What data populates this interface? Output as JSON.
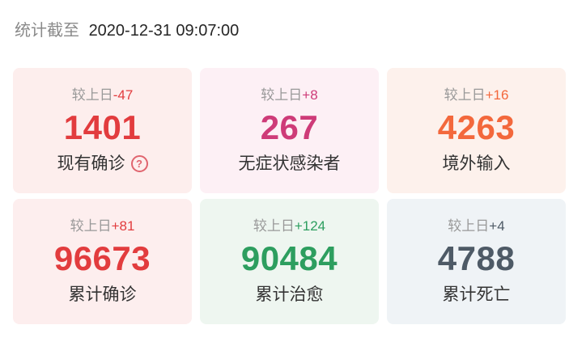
{
  "header": {
    "prefix": "统计截至",
    "timestamp": "2020-12-31 09:07:00"
  },
  "cards": [
    {
      "delta_prefix": "较上日",
      "delta": "-47",
      "value": "1401",
      "label": "现有确诊",
      "accent": "#e23c3e",
      "bg": "#fdeeed",
      "has_help": true
    },
    {
      "delta_prefix": "较上日",
      "delta": "+8",
      "value": "267",
      "label": "无症状感染者",
      "accent": "#ce3b78",
      "bg": "#fdf0f5",
      "has_help": false
    },
    {
      "delta_prefix": "较上日",
      "delta": "+16",
      "value": "4263",
      "label": "境外输入",
      "accent": "#f3683c",
      "bg": "#fdf1ec",
      "has_help": false
    },
    {
      "delta_prefix": "较上日",
      "delta": "+81",
      "value": "96673",
      "label": "累计确诊",
      "accent": "#e23c3e",
      "bg": "#fdeeee",
      "has_help": false
    },
    {
      "delta_prefix": "较上日",
      "delta": "+124",
      "value": "90484",
      "label": "累计治愈",
      "accent": "#2d9e5f",
      "bg": "#eef6f0",
      "has_help": false
    },
    {
      "delta_prefix": "较上日",
      "delta": "+4",
      "value": "4788",
      "label": "累计死亡",
      "accent": "#4e5a66",
      "bg": "#eff3f6",
      "has_help": false
    }
  ],
  "icons": {
    "help": "?"
  },
  "colors": {
    "page_bg": "#ffffff",
    "label_text": "#333333",
    "muted_text": "#999999",
    "header_prefix": "#8a8a8a",
    "header_timestamp": "#262626",
    "help_icon": "#e0646e"
  }
}
